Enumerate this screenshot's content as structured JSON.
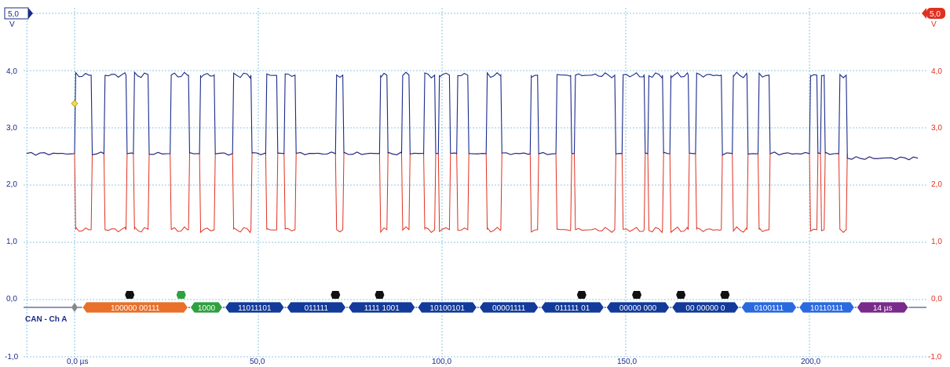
{
  "axes": {
    "left_unit": "V",
    "right_unit": "V",
    "left_max_label": "5,0",
    "right_max_label": "5,0",
    "y_ticks": [
      "4,0",
      "3,0",
      "2,0",
      "1,0",
      "0,0",
      "-1,0"
    ],
    "x_ticks": [
      "0,0 µs",
      "50,0",
      "100,0",
      "150,0",
      "200,0"
    ],
    "left_color": "#1a2a8a",
    "right_color": "#e03020"
  },
  "channel": {
    "label": "CAN - Ch A"
  },
  "chart_data": {
    "type": "line",
    "xlim": [
      -13,
      230
    ],
    "ylim": [
      -1.0,
      5.0
    ],
    "x_unit": "µs",
    "y_unit": "V",
    "series": [
      {
        "color": "#1a2a8a",
        "low": 2.55,
        "high": 3.92,
        "bits_dominant": [
          [
            0,
            4.5
          ],
          [
            8,
            14
          ],
          [
            16,
            20
          ],
          [
            26,
            31
          ],
          [
            34,
            38
          ],
          [
            43,
            48
          ],
          [
            52,
            55
          ],
          [
            57,
            60
          ],
          [
            71,
            73
          ],
          [
            83,
            85
          ],
          [
            89,
            91
          ],
          [
            95,
            98
          ],
          [
            99,
            102
          ],
          [
            104,
            107
          ],
          [
            112,
            116
          ],
          [
            124,
            126
          ],
          [
            131,
            135
          ],
          [
            136,
            147
          ],
          [
            149,
            155
          ],
          [
            156,
            160
          ],
          [
            162,
            167
          ],
          [
            169,
            176
          ],
          [
            179,
            183
          ],
          [
            186,
            189
          ],
          [
            200,
            202
          ],
          [
            203,
            204
          ],
          [
            208,
            210
          ]
        ]
      },
      {
        "color": "#e03020",
        "low": 1.22,
        "high": 2.55
      }
    ],
    "protocol_decode": [
      {
        "label": "100000  00111",
        "color": "#e8702a"
      },
      {
        "label": "1000",
        "color": "#2fa040"
      },
      {
        "label": "11011101",
        "color": "#123a9a"
      },
      {
        "label": "011111",
        "color": "#123a9a"
      },
      {
        "label": "1111  1001",
        "color": "#123a9a"
      },
      {
        "label": "10100101",
        "color": "#123a9a"
      },
      {
        "label": "00001111",
        "color": "#123a9a"
      },
      {
        "label": "011111  01",
        "color": "#123a9a"
      },
      {
        "label": "00000  000",
        "color": "#123a9a"
      },
      {
        "label": "00  00000  0",
        "color": "#123a9a"
      },
      {
        "label": "0100111",
        "color": "#2a6ae0"
      },
      {
        "label": "10110111",
        "color": "#2a6ae0"
      },
      {
        "label": "14 µs",
        "color": "#7a2a8a"
      }
    ],
    "markers": {
      "black": [
        15,
        71,
        83,
        138,
        153,
        165,
        177
      ],
      "green": [
        29
      ]
    }
  }
}
